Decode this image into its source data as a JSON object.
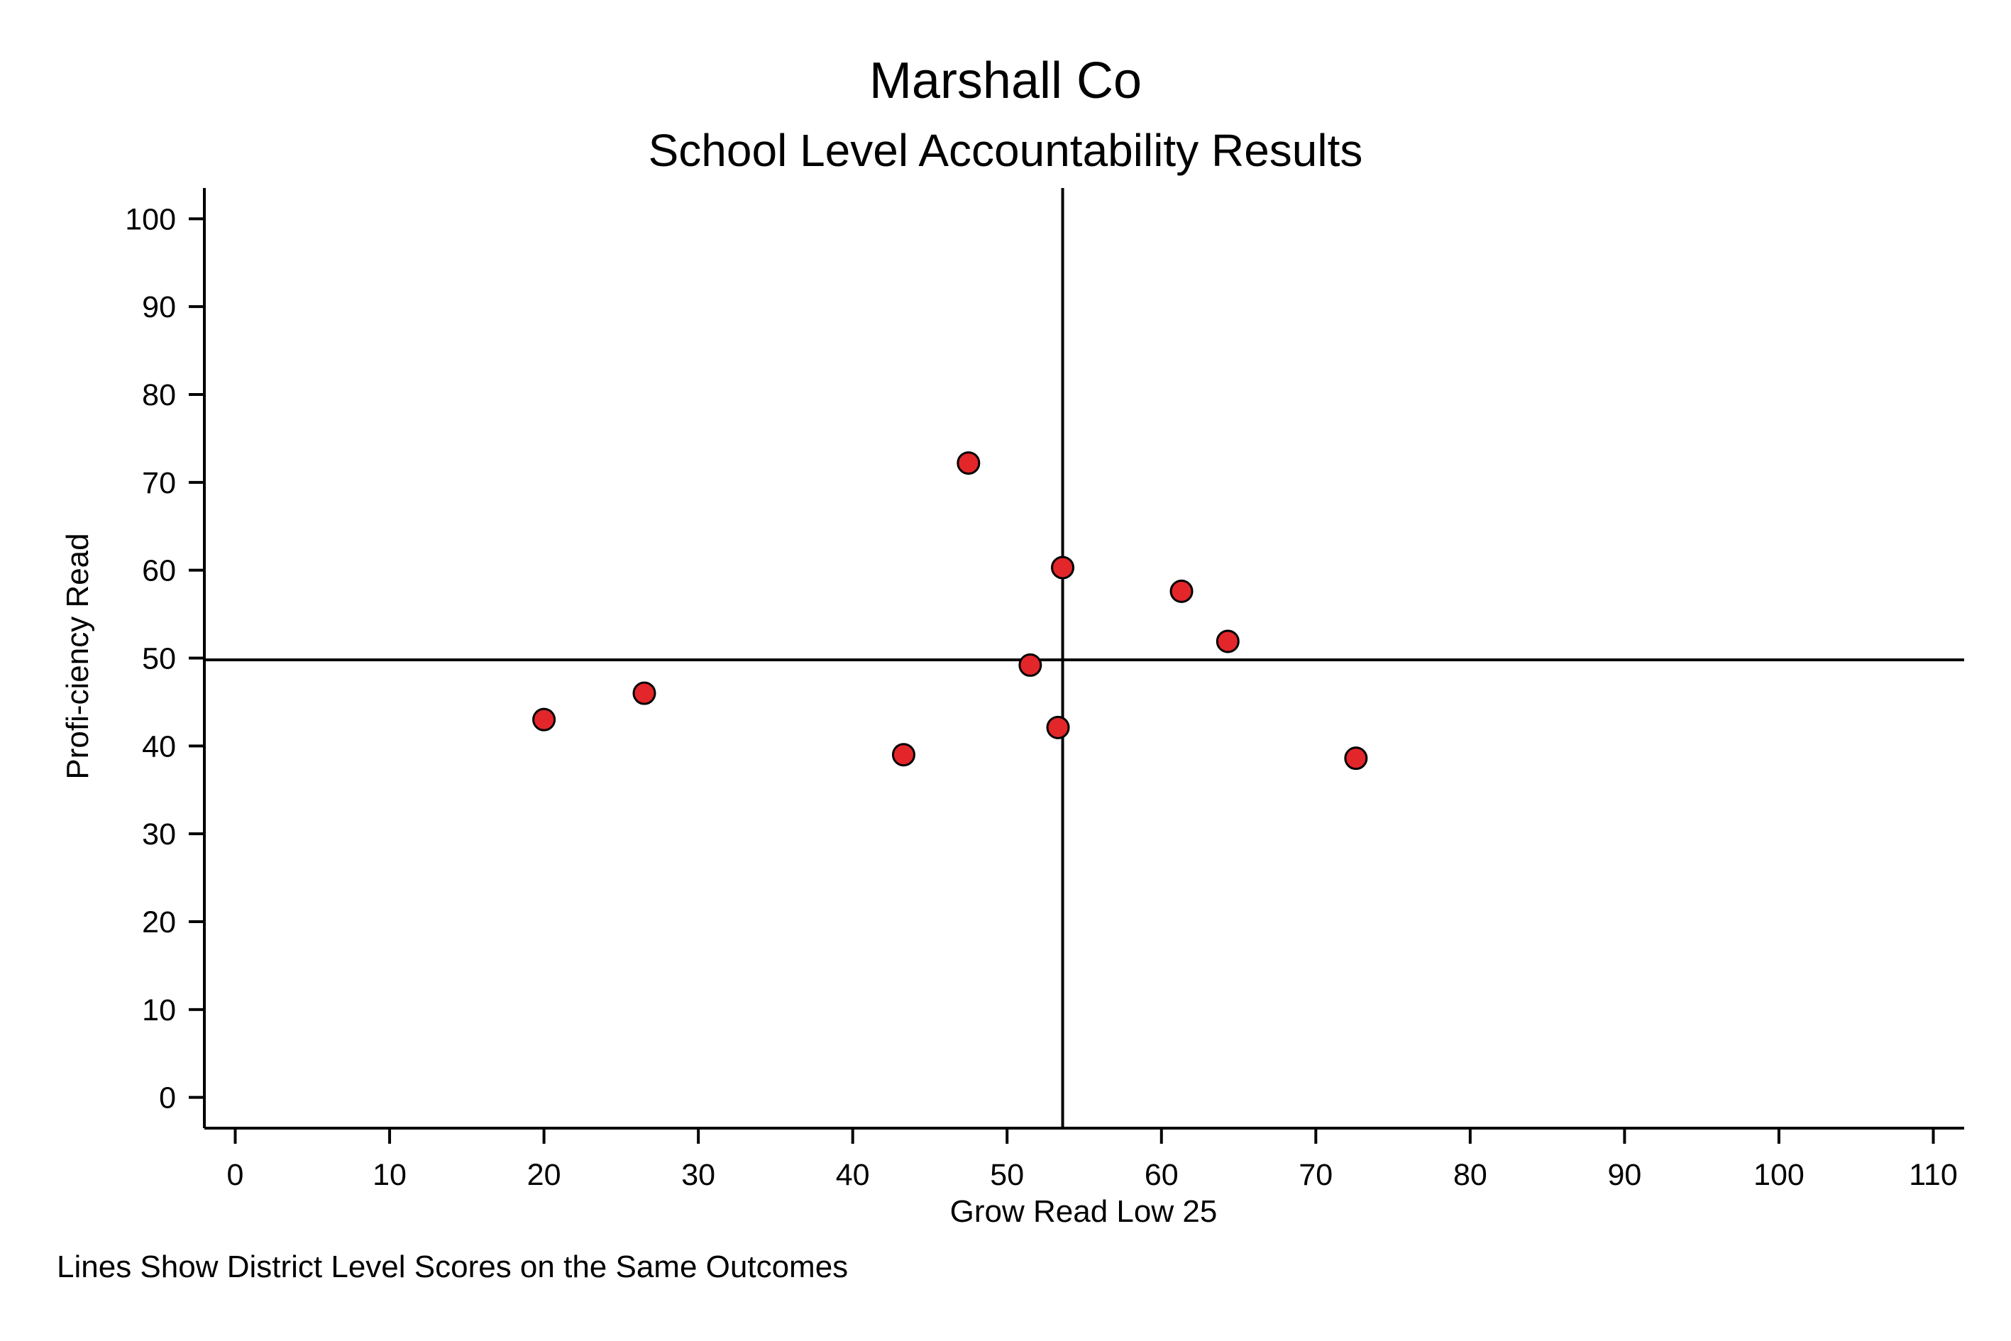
{
  "chart_data": {
    "type": "scatter",
    "title": "Marshall Co",
    "subtitle": "School Level Accountability Results",
    "xlabel": "Grow Read Low 25",
    "ylabel": "Profi-ciency Read",
    "note": "Lines Show District Level Scores on the Same Outcomes",
    "xlim": [
      -2,
      112
    ],
    "ylim": [
      -3.5,
      103.5
    ],
    "x_ticks": [
      0,
      10,
      20,
      30,
      40,
      50,
      60,
      70,
      80,
      90,
      100,
      110
    ],
    "y_ticks": [
      0,
      10,
      20,
      30,
      40,
      50,
      60,
      70,
      80,
      90,
      100
    ],
    "reference_lines": {
      "x": 53.6,
      "y": 49.8
    },
    "marker_color": "#e3262a",
    "marker_edge_color": "#000000",
    "grid": false,
    "points": [
      {
        "x": 20.0,
        "y": 43.0
      },
      {
        "x": 26.5,
        "y": 46.0
      },
      {
        "x": 43.3,
        "y": 39.0
      },
      {
        "x": 47.5,
        "y": 72.2
      },
      {
        "x": 51.5,
        "y": 49.2
      },
      {
        "x": 53.3,
        "y": 42.1
      },
      {
        "x": 53.6,
        "y": 60.3
      },
      {
        "x": 61.3,
        "y": 57.6
      },
      {
        "x": 64.3,
        "y": 51.9
      },
      {
        "x": 72.6,
        "y": 38.6
      }
    ]
  }
}
